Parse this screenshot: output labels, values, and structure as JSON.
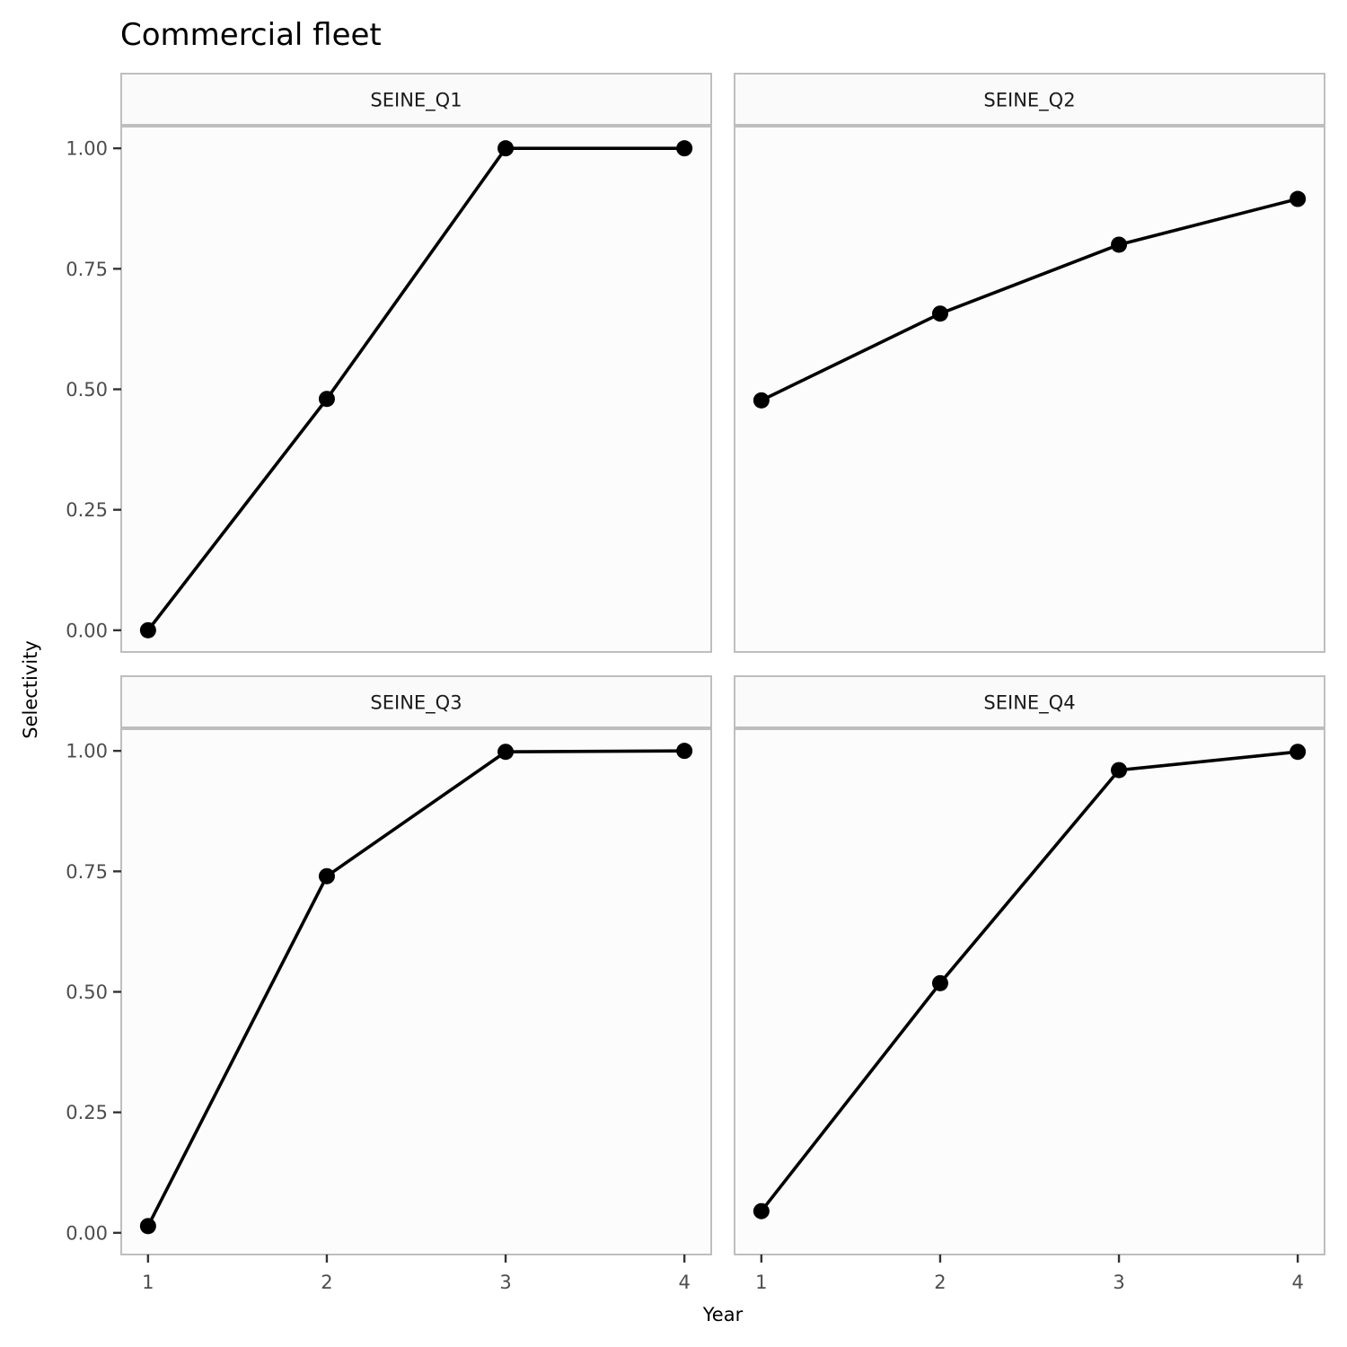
{
  "chart_data": {
    "type": "line",
    "title": "Commercial fleet",
    "xlabel": "Year",
    "ylabel": "Selectivity",
    "x": [
      1,
      2,
      3,
      4
    ],
    "xticks": [
      1,
      2,
      3,
      4
    ],
    "yticks": [
      0.0,
      0.25,
      0.5,
      0.75,
      1.0
    ],
    "ytick_labels": [
      "0.00",
      "0.25",
      "0.50",
      "0.75",
      "1.00"
    ],
    "ylim": [
      -0.045,
      1.045
    ],
    "xlim": [
      0.85,
      4.15
    ],
    "grid": false,
    "panels": [
      {
        "name": "SEINE_Q1",
        "values": [
          0.0,
          0.48,
          1.0,
          1.0
        ]
      },
      {
        "name": "SEINE_Q2",
        "values": [
          0.477,
          0.657,
          0.8,
          0.895
        ]
      },
      {
        "name": "SEINE_Q3",
        "values": [
          0.014,
          0.74,
          0.998,
          1.0
        ]
      },
      {
        "name": "SEINE_Q4",
        "values": [
          0.045,
          0.518,
          0.96,
          0.998
        ]
      }
    ],
    "colors": {
      "line": "#000000",
      "point": "#000000",
      "panel_background": "#fcfcfc",
      "strip_background": "#fafafa",
      "border": "#bebebe"
    }
  }
}
